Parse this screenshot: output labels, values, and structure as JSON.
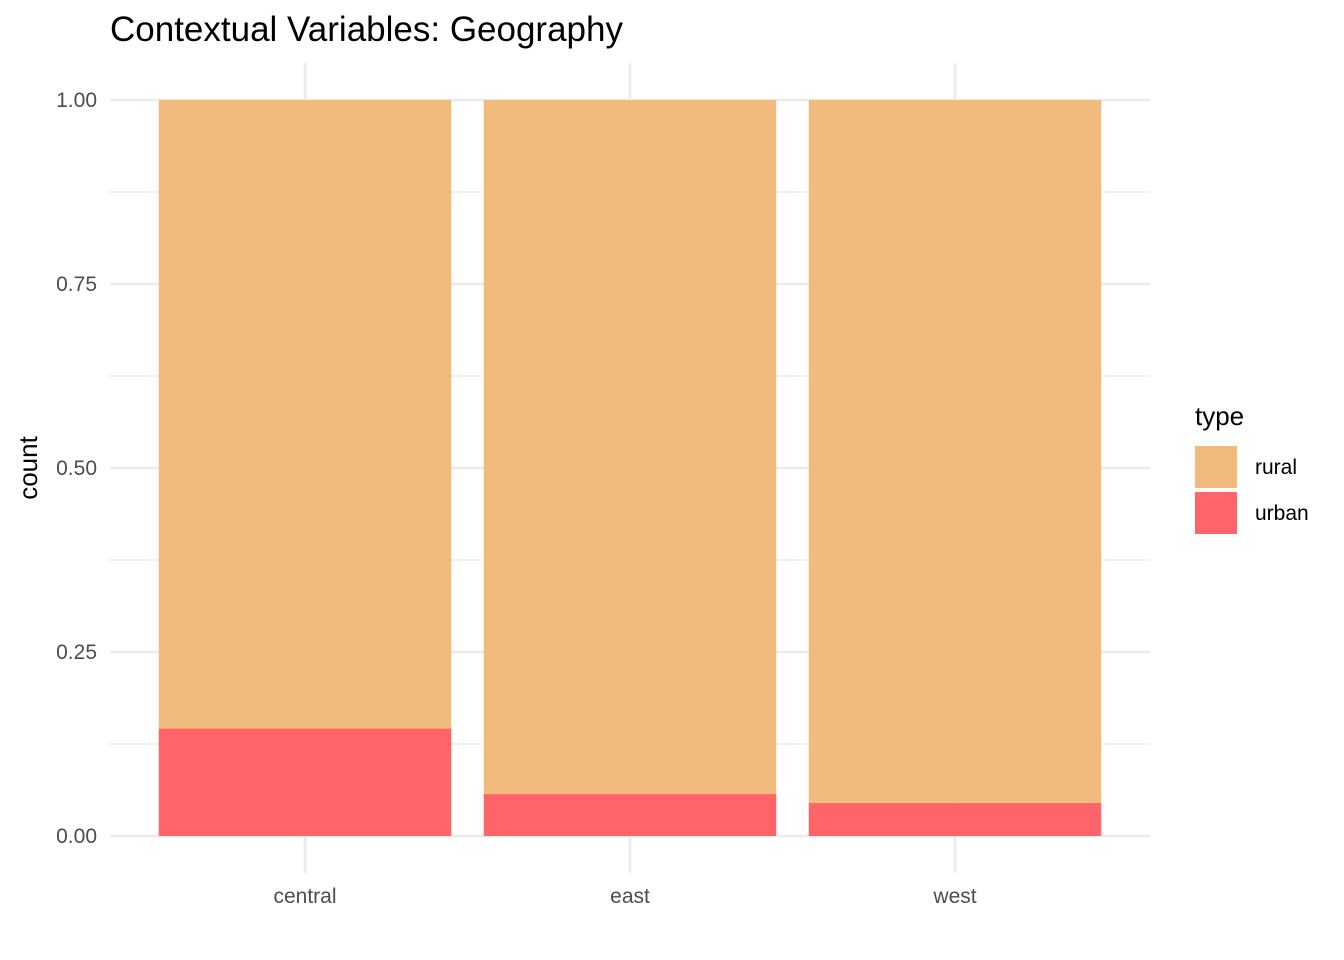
{
  "chart_data": {
    "type": "bar",
    "stacked": true,
    "title": "Contextual Variables: Geography",
    "xlabel": "",
    "ylabel": "count",
    "categories": [
      "central",
      "east",
      "west"
    ],
    "series": [
      {
        "name": "rural",
        "color": "#F0BB7C",
        "values": [
          0.854,
          0.943,
          0.955
        ]
      },
      {
        "name": "urban",
        "color": "#FF6568",
        "values": [
          0.146,
          0.057,
          0.045
        ]
      }
    ],
    "ylim": [
      0,
      1
    ],
    "yticks": [
      0,
      0.25,
      0.5,
      0.75,
      1
    ],
    "ytick_labels": [
      "0.00",
      "0.25",
      "0.50",
      "0.75",
      "1.00"
    ],
    "grid": true,
    "legend": {
      "title": "type",
      "position": "right",
      "items": [
        "rural",
        "urban"
      ]
    }
  }
}
